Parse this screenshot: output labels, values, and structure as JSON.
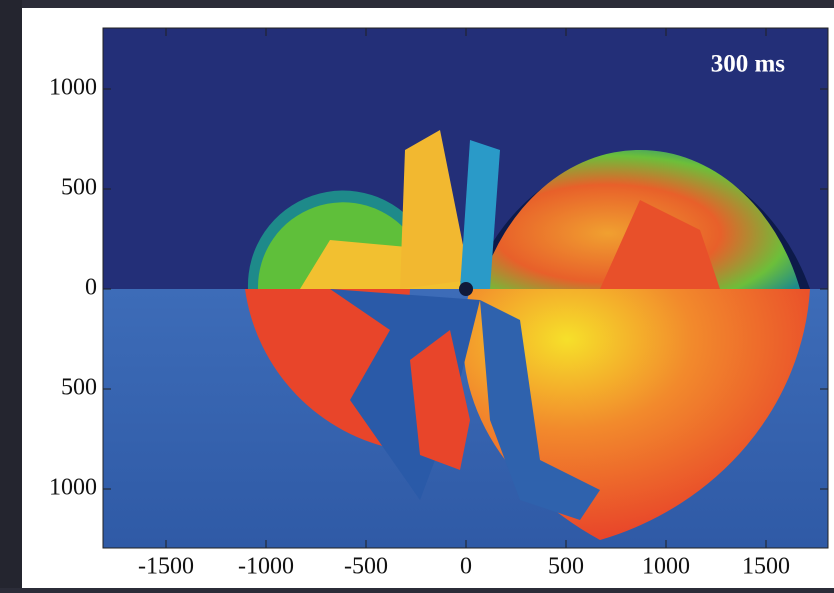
{
  "chart_data": {
    "type": "image",
    "annotation": "300 ms",
    "xlim": [
      -1815,
      1810
    ],
    "ylim": [
      -1295,
      1305
    ],
    "xticks": [
      -1500,
      -1000,
      -500,
      0,
      500,
      1000,
      1500
    ],
    "yticks": [
      1000,
      500,
      0,
      {
        "value": -500,
        "label": "500"
      },
      {
        "value": -1000,
        "label": "1000"
      }
    ]
  }
}
